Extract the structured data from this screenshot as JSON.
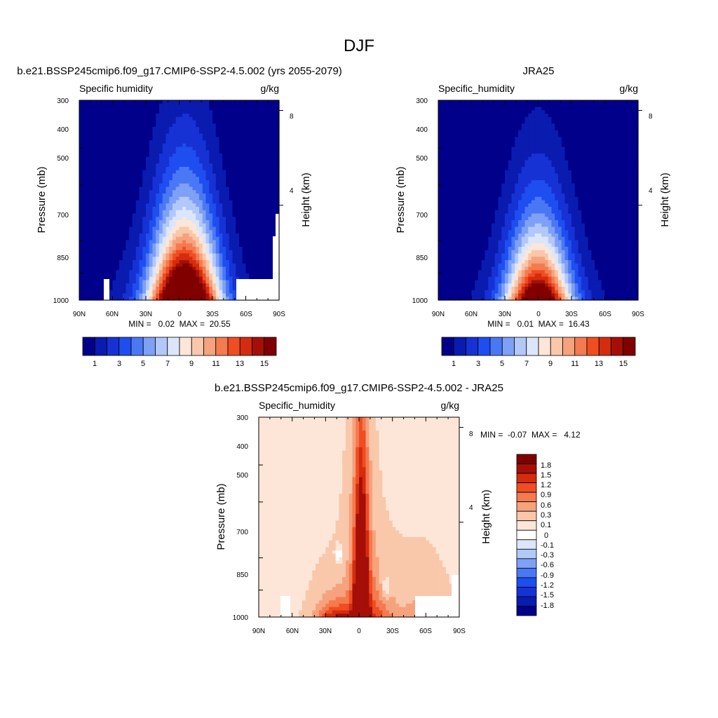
{
  "page_title": "DJF",
  "colors": {
    "levels_palette": [
      "#00008a",
      "#0a1bb0",
      "#1632d4",
      "#1e4ef0",
      "#4a78f4",
      "#7ea0f6",
      "#b2c8f8",
      "#dbe6fb",
      "#fde6d8",
      "#f9c7aa",
      "#f6a27c",
      "#f47a4f",
      "#f04d22",
      "#d42c0f",
      "#a50f08",
      "#800000"
    ],
    "diff_palette": [
      "#00008a",
      "#0a1bb0",
      "#1632d4",
      "#1e4ef0",
      "#4a78f4",
      "#7ea0f6",
      "#b2c8f8",
      "#dbe6fb",
      "#ffffff",
      "#fde6d8",
      "#f9c7aa",
      "#f6a27c",
      "#f47a4f",
      "#f04d22",
      "#d42c0f",
      "#a50f08",
      "#800000"
    ],
    "missing": "#ffffff"
  },
  "panels": {
    "p1": {
      "title": "b.e21.BSSP245cmip6.f09_g17.CMIP6-SSP2-4.5.002 (yrs 2055-2079)",
      "left_string": "Specific humidity",
      "right_string": "g/kg",
      "ylabel": "Pressure (mb)",
      "y2label": "Height (km)",
      "ytick_labels": [
        "300",
        "400",
        "500",
        "700",
        "850",
        "1000"
      ],
      "y2tick_labels": [
        "8",
        "4"
      ],
      "xtick_labels": [
        "90N",
        "60N",
        "30N",
        "0",
        "30S",
        "60S",
        "90S"
      ],
      "stats_text": "MIN =   0.02  MAX =  20.55",
      "colorbar_labels": [
        "1",
        "3",
        "5",
        "7",
        "9",
        "11",
        "13",
        "15"
      ]
    },
    "p2": {
      "title": "JRA25",
      "left_string": "Specific_humidity",
      "right_string": "g/kg",
      "ylabel": "Pressure (mb)",
      "y2label": "Height (km)",
      "ytick_labels": [
        "300",
        "400",
        "500",
        "700",
        "850",
        "1000"
      ],
      "y2tick_labels": [
        "8",
        "4"
      ],
      "xtick_labels": [
        "90N",
        "60N",
        "30N",
        "0",
        "30S",
        "60S",
        "90S"
      ],
      "stats_text": "MIN =   0.01  MAX =  16.43",
      "colorbar_labels": [
        "1",
        "3",
        "5",
        "7",
        "9",
        "11",
        "13",
        "15"
      ]
    },
    "p3": {
      "title": "b.e21.BSSP245cmip6.f09_g17.CMIP6-SSP2-4.5.002 - JRA25",
      "left_string": "Specific_humidity",
      "right_string": "g/kg",
      "ylabel": "Pressure (mb)",
      "y2label": "Height (km)",
      "ytick_labels": [
        "300",
        "400",
        "500",
        "700",
        "850",
        "1000"
      ],
      "y2tick_labels": [
        "8",
        "4"
      ],
      "xtick_labels": [
        "90N",
        "60N",
        "30N",
        "0",
        "30S",
        "60S",
        "90S"
      ],
      "stats_text": "MIN =  -0.07  MAX =   4.12",
      "colorbar_labels": [
        "1.8",
        "1.5",
        "1.2",
        "0.9",
        "0.6",
        "0.3",
        "0.1",
        "0",
        "-0.1",
        "-0.3",
        "-0.6",
        "-0.9",
        "-1.2",
        "-1.5",
        "-1.8"
      ]
    }
  },
  "chart_data": [
    {
      "type": "heatmap",
      "title": "b.e21.BSSP245cmip6.f09_g17.CMIP6-SSP2-4.5.002 (yrs 2055-2079)",
      "variable": "Specific humidity",
      "units": "g/kg",
      "x": [
        -90,
        -60,
        -30,
        0,
        30,
        60,
        90
      ],
      "xtick_labels": [
        "90N",
        "60N",
        "30N",
        "0",
        "30S",
        "60S",
        "90S"
      ],
      "y": [
        300,
        400,
        500,
        700,
        850,
        1000
      ],
      "ylabel": "Pressure (mb)",
      "y2label": "Height (km)",
      "y2ticks": [
        8,
        4
      ],
      "y_scale": "log",
      "contour_levels": [
        1,
        2,
        3,
        4,
        5,
        6,
        7,
        8,
        9,
        10,
        11,
        12,
        13,
        14,
        15
      ],
      "min": 0.02,
      "max": 20.55,
      "field": {
        "peak_value": 20.5,
        "peak_lat": 5,
        "lat_width": 20,
        "surface_base": 1.0,
        "scale_height_ratio": 0.42
      }
    },
    {
      "type": "heatmap",
      "title": "JRA25",
      "variable": "Specific_humidity",
      "units": "g/kg",
      "x": [
        -90,
        -60,
        -30,
        0,
        30,
        60,
        90
      ],
      "xtick_labels": [
        "90N",
        "60N",
        "30N",
        "0",
        "30S",
        "60S",
        "90S"
      ],
      "y": [
        300,
        400,
        500,
        700,
        850,
        1000
      ],
      "ylabel": "Pressure (mb)",
      "y2label": "Height (km)",
      "y2ticks": [
        8,
        4
      ],
      "y_scale": "log",
      "contour_levels": [
        1,
        2,
        3,
        4,
        5,
        6,
        7,
        8,
        9,
        10,
        11,
        12,
        13,
        14,
        15
      ],
      "min": 0.01,
      "max": 16.43,
      "field": {
        "peak_value": 16.4,
        "peak_lat": 0,
        "lat_width": 19,
        "surface_base": 0.8,
        "scale_height_ratio": 0.36
      }
    },
    {
      "type": "heatmap",
      "title": "b.e21.BSSP245cmip6.f09_g17.CMIP6-SSP2-4.5.002 - JRA25",
      "variable": "Specific_humidity",
      "units": "g/kg",
      "x": [
        -90,
        -60,
        -30,
        0,
        30,
        60,
        90
      ],
      "xtick_labels": [
        "90N",
        "60N",
        "30N",
        "0",
        "30S",
        "60S",
        "90S"
      ],
      "y": [
        300,
        400,
        500,
        700,
        850,
        1000
      ],
      "ylabel": "Pressure (mb)",
      "y2label": "Height (km)",
      "y2ticks": [
        8,
        4
      ],
      "y_scale": "log",
      "contour_levels": [
        -1.8,
        -1.5,
        -1.2,
        -0.9,
        -0.6,
        -0.3,
        -0.1,
        0,
        0.1,
        0.3,
        0.6,
        0.9,
        1.2,
        1.5,
        1.8
      ],
      "min": -0.07,
      "max": 4.12
    }
  ]
}
